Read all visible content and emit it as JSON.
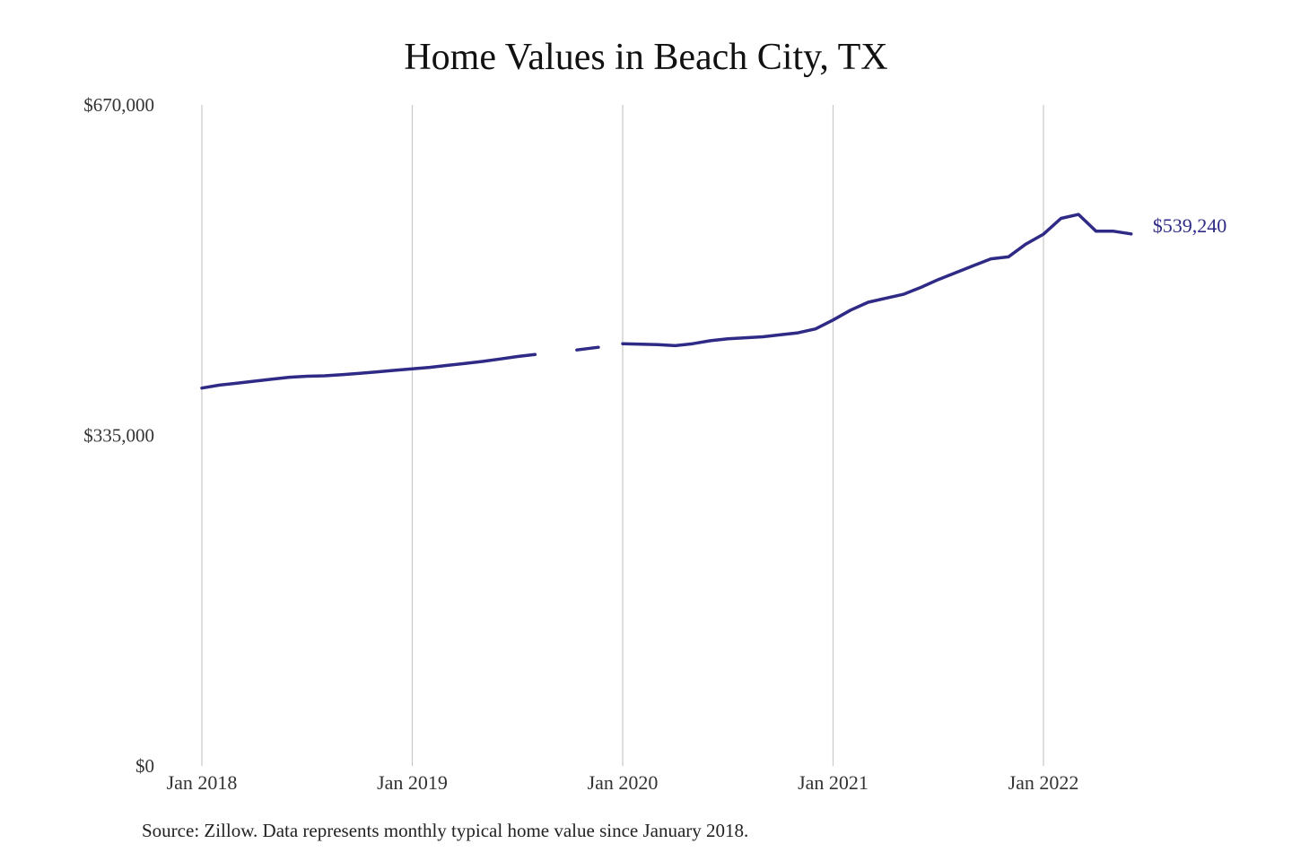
{
  "chart_data": {
    "type": "line",
    "title": "Home Values in Beach City, TX",
    "xlabel": "",
    "ylabel": "",
    "ylim": [
      0,
      670000
    ],
    "y_ticks": [
      {
        "value": 0,
        "label": "$0"
      },
      {
        "value": 335000,
        "label": "$335,000"
      },
      {
        "value": 670000,
        "label": "$670,000"
      }
    ],
    "x_ticks": [
      {
        "value": "2018-01",
        "label": "Jan 2018"
      },
      {
        "value": "2019-01",
        "label": "Jan 2019"
      },
      {
        "value": "2020-01",
        "label": "Jan 2020"
      },
      {
        "value": "2021-01",
        "label": "Jan 2021"
      },
      {
        "value": "2022-01",
        "label": "Jan 2022"
      }
    ],
    "grid": "vertical",
    "line_color": "#2e2a85",
    "series": [
      {
        "x": [
          "2018-01",
          "2018-02",
          "2018-03",
          "2018-04",
          "2018-05",
          "2018-06",
          "2018-07",
          "2018-08",
          "2018-09",
          "2018-10",
          "2018-11",
          "2018-12",
          "2019-01",
          "2019-02",
          "2019-03",
          "2019-04",
          "2019-05",
          "2019-06",
          "2019-07",
          "2019-08",
          "2019-09",
          "2019-10",
          "2019-11",
          "2019-12",
          "2020-01",
          "2020-02",
          "2020-03",
          "2020-04",
          "2020-05",
          "2020-06",
          "2020-07",
          "2020-08",
          "2020-09",
          "2020-10",
          "2020-11",
          "2020-12",
          "2021-01",
          "2021-02",
          "2021-03",
          "2021-04",
          "2021-05",
          "2021-06",
          "2021-07",
          "2021-08",
          "2021-09",
          "2021-10",
          "2021-11",
          "2021-12",
          "2022-01",
          "2022-02",
          "2022-03",
          "2022-04",
          "2022-05",
          "2022-06"
        ],
        "values": [
          383000,
          386000,
          388000,
          390000,
          392000,
          394000,
          395000,
          395500,
          396500,
          398000,
          399500,
          401000,
          402500,
          404000,
          406000,
          408000,
          410000,
          412500,
          415000,
          417000,
          null,
          null,
          423000,
          null,
          428000,
          427500,
          427000,
          426000,
          428000,
          431000,
          433000,
          434000,
          435000,
          437000,
          439000,
          443000,
          452000,
          462000,
          470000,
          474000,
          478000,
          485000,
          493000,
          500000,
          507000,
          514000,
          516000,
          529000,
          539000,
          555000,
          559000,
          542000,
          542000,
          539240
        ]
      }
    ],
    "end_label": "$539,240",
    "source": "Source: Zillow. Data represents monthly typical home value since January 2018."
  }
}
